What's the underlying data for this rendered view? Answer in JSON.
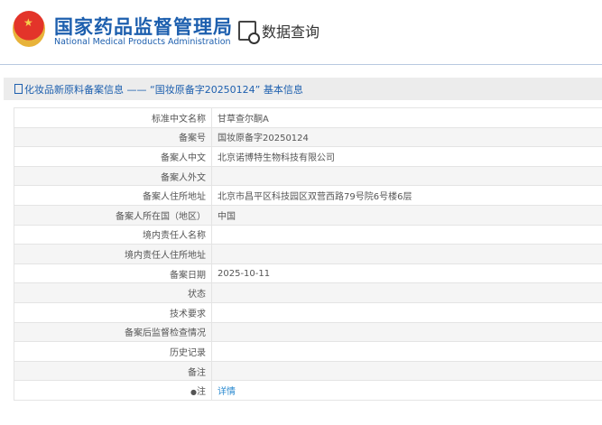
{
  "header": {
    "brand_cn": "国家药品监督管理局",
    "brand_en": "National Medical Products Administration",
    "query_label": "数据查询"
  },
  "title": "化妆品新原料备案信息 —— “国妆原备字20250124” 基本信息",
  "rows": [
    {
      "label": "标准中文名称",
      "value": "甘草查尔酮A"
    },
    {
      "label": "备案号",
      "value": "国妆原备字20250124"
    },
    {
      "label": "备案人中文",
      "value": "北京诺博特生物科技有限公司"
    },
    {
      "label": "备案人外文",
      "value": ""
    },
    {
      "label": "备案人住所地址",
      "value": "北京市昌平区科技园区双营西路79号院6号楼6层"
    },
    {
      "label": "备案人所在国（地区）",
      "value": "中国"
    },
    {
      "label": "境内责任人名称",
      "value": ""
    },
    {
      "label": "境内责任人住所地址",
      "value": ""
    },
    {
      "label": "备案日期",
      "value": "2025-10-11"
    },
    {
      "label": "状态",
      "value": ""
    },
    {
      "label": "技术要求",
      "value": ""
    },
    {
      "label": "备案后监督检查情况",
      "value": ""
    },
    {
      "label": "历史记录",
      "value": ""
    },
    {
      "label": "备注",
      "value": ""
    },
    {
      "label": "注",
      "value": "详情"
    }
  ]
}
